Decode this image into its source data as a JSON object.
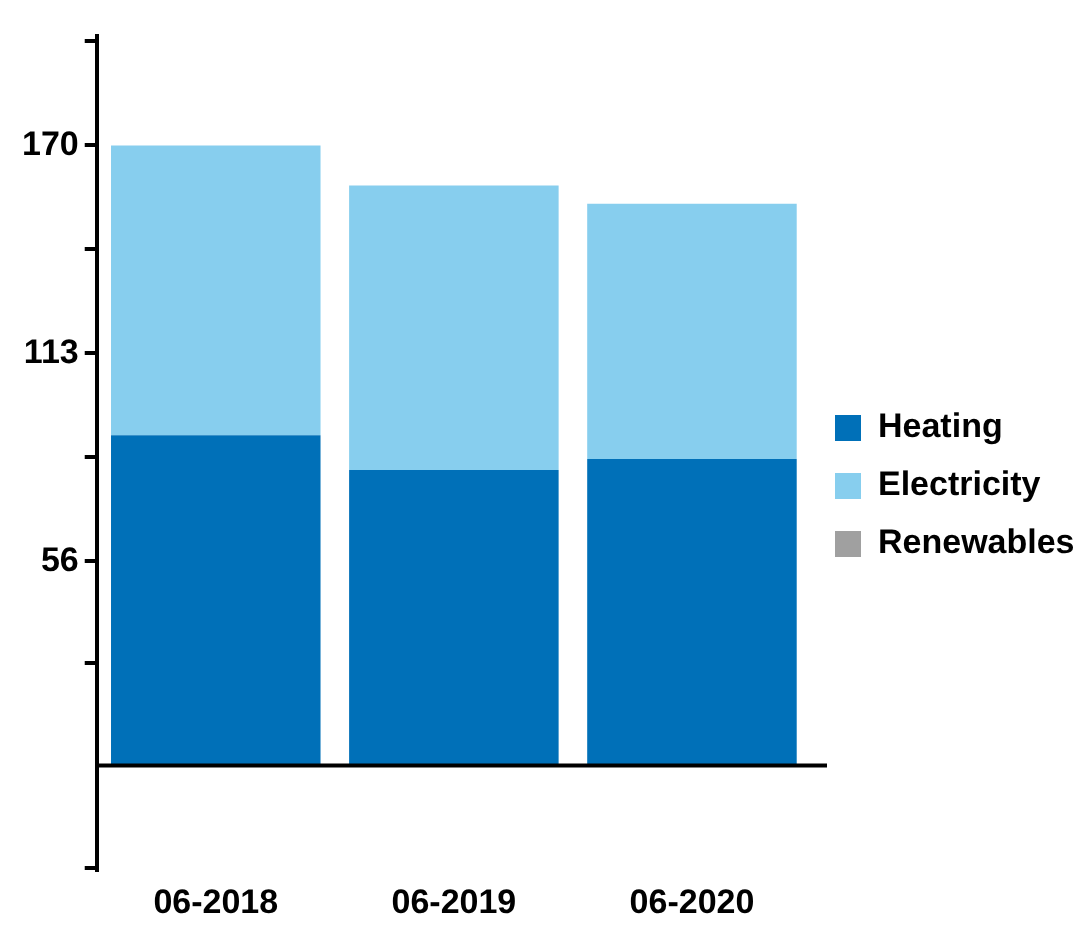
{
  "chart_data": {
    "type": "bar",
    "stacked": true,
    "categories": [
      "06-2018",
      "06-2019",
      "06-2020"
    ],
    "series": [
      {
        "name": "Heating",
        "color": "#0070b8",
        "values": [
          90.5,
          81,
          84
        ]
      },
      {
        "name": "Electricity",
        "color": "#87ceee",
        "values": [
          79.5,
          78,
          70
        ]
      },
      {
        "name": "Renewables",
        "color": "#a0a0a0",
        "values": [
          0,
          0,
          0
        ]
      }
    ],
    "ylim": [
      -29,
      200
    ],
    "yticks": [
      {
        "value": -28,
        "label": null
      },
      {
        "value": 28,
        "label": null
      },
      56,
      {
        "value": 84.5,
        "label": null
      },
      113,
      {
        "value": 141.5,
        "label": null
      },
      170,
      {
        "value": 198.5,
        "label": null
      }
    ],
    "legend": "right",
    "grid": false
  }
}
